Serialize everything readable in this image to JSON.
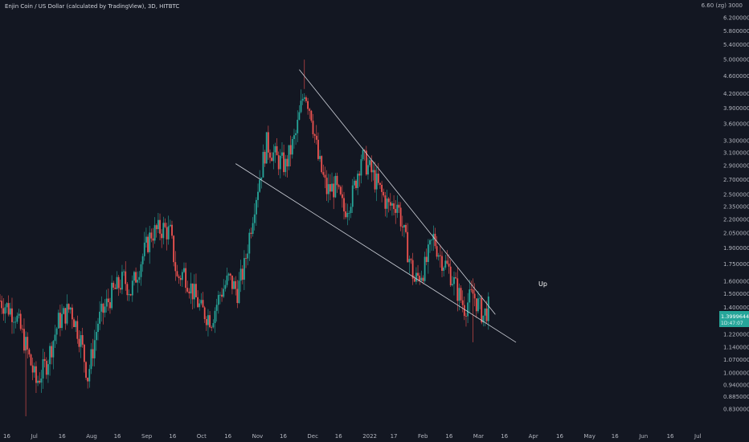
{
  "header": {
    "symbol_title": "Enjin Coin / US Dollar (calculated by TradingView), 3D, HITBTC"
  },
  "price_axis": {
    "corner_label": "6.60 (zg) 3000",
    "ticks": [
      {
        "label": "6.2000000000",
        "value": 6.2
      },
      {
        "label": "5.8000000000",
        "value": 5.8
      },
      {
        "label": "5.4000000000",
        "value": 5.4
      },
      {
        "label": "5.0000000000",
        "value": 5.0
      },
      {
        "label": "4.6000000000",
        "value": 4.6
      },
      {
        "label": "4.2000000000",
        "value": 4.2
      },
      {
        "label": "3.9000000000",
        "value": 3.9
      },
      {
        "label": "3.6000000000",
        "value": 3.6
      },
      {
        "label": "3.3000000000",
        "value": 3.3
      },
      {
        "label": "3.1000000000",
        "value": 3.1
      },
      {
        "label": "2.9000000000",
        "value": 2.9
      },
      {
        "label": "2.7000000000",
        "value": 2.7
      },
      {
        "label": "2.5000000000",
        "value": 2.5
      },
      {
        "label": "2.3500000000",
        "value": 2.35
      },
      {
        "label": "2.2000000000",
        "value": 2.2
      },
      {
        "label": "2.0500000000",
        "value": 2.05
      },
      {
        "label": "1.9000000000",
        "value": 1.9
      },
      {
        "label": "1.7500000000",
        "value": 1.75
      },
      {
        "label": "1.6000000000",
        "value": 1.6
      },
      {
        "label": "1.5000000000",
        "value": 1.5
      },
      {
        "label": "1.4000000000",
        "value": 1.4
      },
      {
        "label": "1.3000000000",
        "value": 1.3
      },
      {
        "label": "1.2200000000",
        "value": 1.22
      },
      {
        "label": "1.1400000000",
        "value": 1.14
      },
      {
        "label": "1.0700000000",
        "value": 1.07
      },
      {
        "label": "1.0000000000",
        "value": 1.0
      },
      {
        "label": "0.9400000000",
        "value": 0.94
      },
      {
        "label": "0.8850000000",
        "value": 0.885
      },
      {
        "label": "0.8300000000",
        "value": 0.83
      }
    ],
    "current_price_label": "1.3999644239",
    "countdown_label": "1D:47:07",
    "current_price_color": "#26a69a"
  },
  "time_axis": {
    "ticks": [
      "16",
      "Jul",
      "16",
      "Aug",
      "16",
      "Sep",
      "16",
      "Oct",
      "16",
      "Nov",
      "16",
      "Dec",
      "16",
      "2022",
      "17",
      "Feb",
      "16",
      "Mar",
      "16",
      "Apr",
      "16",
      "May",
      "16",
      "Jun",
      "16",
      "Jul"
    ]
  },
  "annotation": {
    "text": "Up"
  },
  "colors": {
    "background": "#131722",
    "up_candle": "#26a69a",
    "down_candle": "#ef5350",
    "trendline": "#d1d4dc",
    "axis_text": "#b2b5be"
  },
  "chart_data": {
    "type": "candlestick",
    "scale": "log",
    "title": "Enjin Coin / US Dollar (calculated by TradingView), 3D, HITBTC",
    "ylim": [
      0.79,
      6.6
    ],
    "grid": false,
    "time_range": [
      "2021-06-01",
      "2022-07-20"
    ],
    "anchors": [
      [
        "2021-06-01",
        1.45
      ],
      [
        "2021-06-10",
        1.35
      ],
      [
        "2021-06-16",
        1.15
      ],
      [
        "2021-06-22",
        0.95
      ],
      [
        "2021-06-28",
        1.05
      ],
      [
        "2021-07-05",
        1.3
      ],
      [
        "2021-07-12",
        1.4
      ],
      [
        "2021-07-18",
        1.18
      ],
      [
        "2021-07-22",
        0.98
      ],
      [
        "2021-07-28",
        1.3
      ],
      [
        "2021-08-05",
        1.5
      ],
      [
        "2021-08-12",
        1.62
      ],
      [
        "2021-08-16",
        1.52
      ],
      [
        "2021-08-22",
        1.78
      ],
      [
        "2021-08-28",
        2.05
      ],
      [
        "2021-09-04",
        2.1
      ],
      [
        "2021-09-08",
        2.05
      ],
      [
        "2021-09-12",
        1.62
      ],
      [
        "2021-09-16",
        1.68
      ],
      [
        "2021-09-21",
        1.52
      ],
      [
        "2021-09-26",
        1.38
      ],
      [
        "2021-10-02",
        1.32
      ],
      [
        "2021-10-07",
        1.5
      ],
      [
        "2021-10-12",
        1.62
      ],
      [
        "2021-10-17",
        1.52
      ],
      [
        "2021-10-21",
        1.72
      ],
      [
        "2021-10-27",
        2.4
      ],
      [
        "2021-11-03",
        3.25
      ],
      [
        "2021-11-09",
        3.0
      ],
      [
        "2021-11-14",
        2.9
      ],
      [
        "2021-11-20",
        3.4
      ],
      [
        "2021-11-25",
        4.3
      ],
      [
        "2021-11-29",
        3.8
      ],
      [
        "2021-12-03",
        3.0
      ],
      [
        "2021-12-08",
        2.55
      ],
      [
        "2021-12-13",
        2.6
      ],
      [
        "2021-12-18",
        2.3
      ],
      [
        "2021-12-23",
        2.5
      ],
      [
        "2021-12-28",
        3.05
      ],
      [
        "2022-01-03",
        2.8
      ],
      [
        "2022-01-08",
        2.55
      ],
      [
        "2022-01-13",
        2.35
      ],
      [
        "2022-01-18",
        2.4
      ],
      [
        "2022-01-23",
        1.95
      ],
      [
        "2022-01-28",
        1.6
      ],
      [
        "2022-02-03",
        1.72
      ],
      [
        "2022-02-08",
        2.0
      ],
      [
        "2022-02-12",
        1.82
      ],
      [
        "2022-02-17",
        1.7
      ],
      [
        "2022-02-22",
        1.52
      ],
      [
        "2022-02-26",
        1.4
      ],
      [
        "2022-03-03",
        1.5
      ],
      [
        "2022-03-06",
        1.42
      ],
      [
        "2022-03-09",
        1.34
      ],
      [
        "2022-03-12",
        1.4
      ]
    ],
    "trendlines": [
      {
        "from": [
          "2021-11-22",
          4.75
        ],
        "to": [
          "2022-03-16",
          1.35
        ]
      },
      {
        "from": [
          "2021-10-16",
          2.93
        ],
        "to": [
          "2022-03-28",
          1.17
        ]
      }
    ],
    "notable_points": {
      "all_time_high": [
        "2021-11-25",
        5.0
      ],
      "low_wick": [
        "2021-06-16",
        0.8
      ],
      "mar_low_wick": [
        "2022-03-03",
        1.17
      ]
    }
  }
}
